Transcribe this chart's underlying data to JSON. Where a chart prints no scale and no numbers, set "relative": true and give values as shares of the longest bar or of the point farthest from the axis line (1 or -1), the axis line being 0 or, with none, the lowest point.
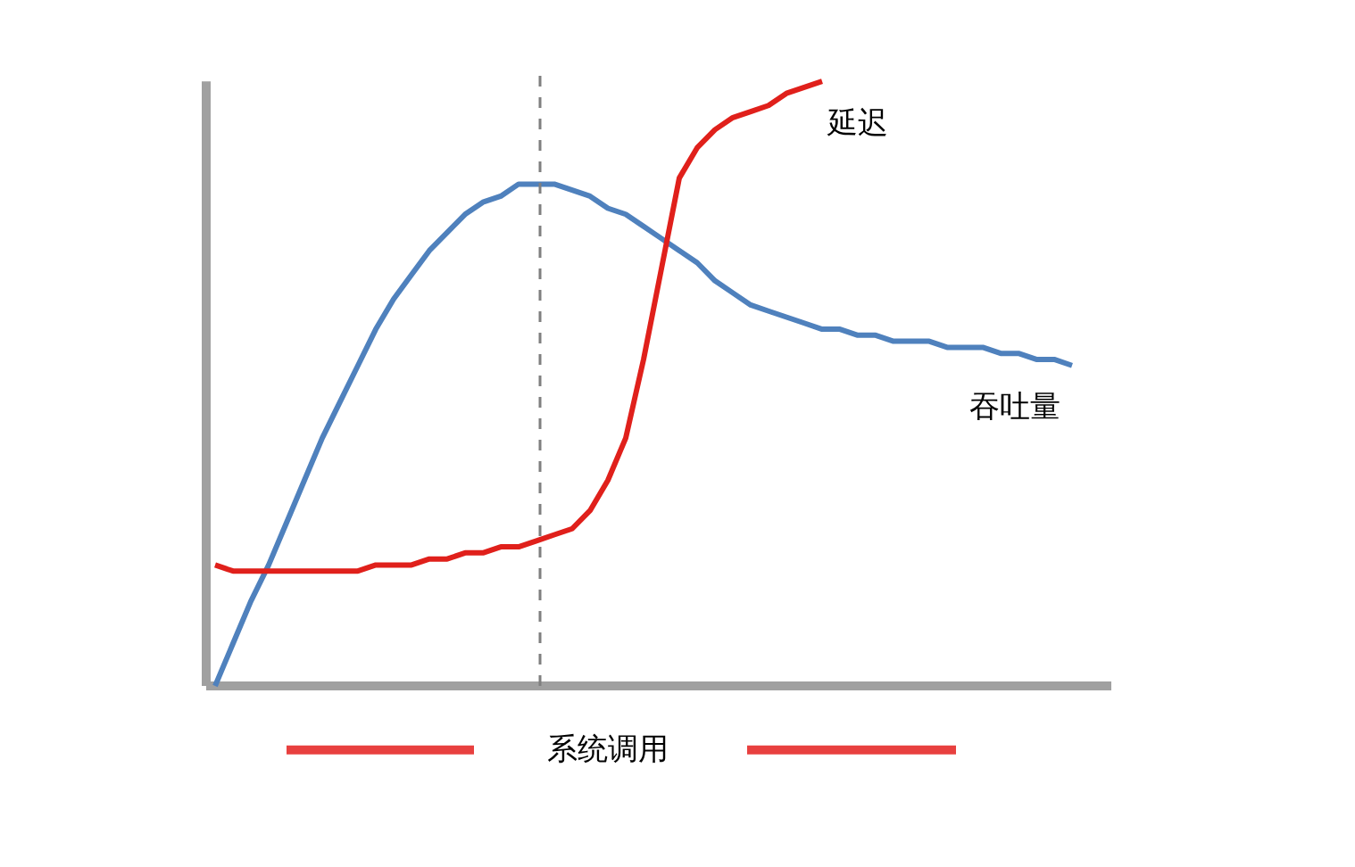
{
  "chart_data": {
    "type": "line",
    "relative": true,
    "xlabel": "系统调用",
    "categories": [
      null,
      null,
      null,
      null,
      null,
      null,
      null,
      null,
      null,
      null,
      null,
      null,
      null,
      null,
      null,
      null,
      null,
      null,
      null,
      null,
      null,
      null,
      null,
      null,
      null,
      null,
      null,
      null,
      null,
      null,
      null,
      null,
      null,
      null,
      null,
      null,
      null,
      null,
      null,
      null,
      null,
      null,
      null,
      null,
      null,
      null,
      null,
      null,
      null
    ],
    "series": [
      {
        "name": "吞吐量",
        "color": "#4f81bd",
        "values": [
          0,
          0.07,
          0.14,
          0.2,
          0.27,
          0.34,
          0.41,
          0.47,
          0.53,
          0.59,
          0.64,
          0.68,
          0.72,
          0.75,
          0.78,
          0.8,
          0.81,
          0.83,
          0.83,
          0.83,
          0.82,
          0.81,
          0.79,
          0.78,
          0.76,
          0.74,
          0.72,
          0.7,
          0.67,
          0.65,
          0.63,
          0.62,
          0.61,
          0.6,
          0.59,
          0.59,
          0.58,
          0.58,
          0.57,
          0.57,
          0.57,
          0.56,
          0.56,
          0.56,
          0.55,
          0.55,
          0.54,
          0.54,
          0.53
        ]
      },
      {
        "name": "延迟",
        "color": "#e0201b",
        "values": [
          0.2,
          0.19,
          0.19,
          0.19,
          0.19,
          0.19,
          0.19,
          0.19,
          0.19,
          0.2,
          0.2,
          0.2,
          0.21,
          0.21,
          0.22,
          0.22,
          0.23,
          0.23,
          0.24,
          0.25,
          0.26,
          0.29,
          0.34,
          0.41,
          0.54,
          0.69,
          0.84,
          0.89,
          0.92,
          0.94,
          0.95,
          0.96,
          0.98,
          0.99,
          1,
          null,
          null,
          null,
          null,
          null,
          null,
          null,
          null,
          null,
          null,
          null,
          null,
          null,
          null
        ]
      }
    ],
    "grid": false,
    "legend": false,
    "marker": "none",
    "line_style": "solid"
  }
}
